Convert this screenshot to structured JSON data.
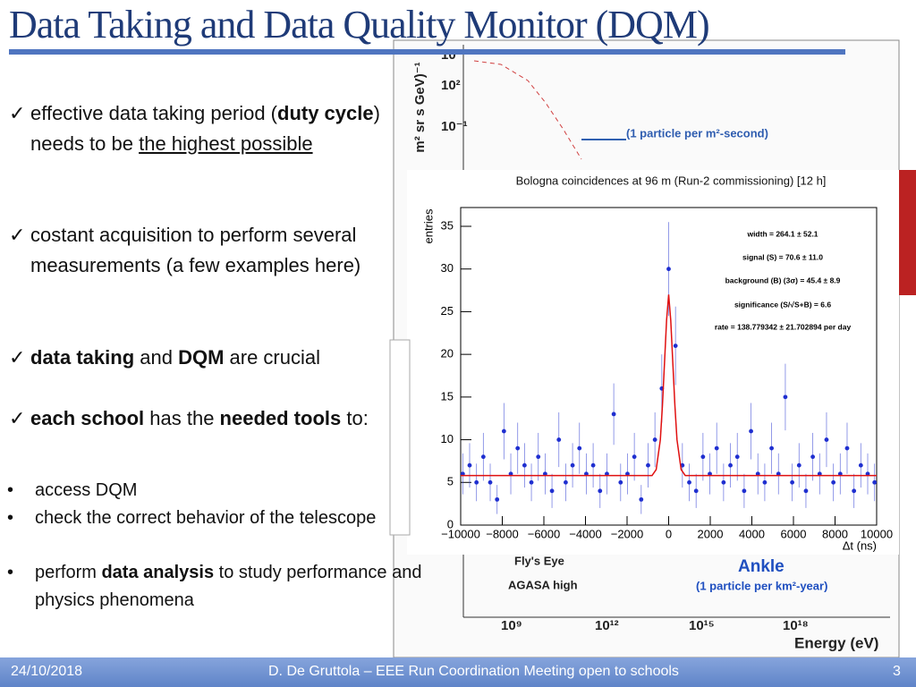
{
  "slide": {
    "title": "Data Taking and Data Quality Monitor (DQM)",
    "bullets": [
      [
        {
          "text": "effective data taking period ("
        },
        {
          "text": "duty cycle",
          "bold": true
        },
        {
          "text": ") needs to be "
        },
        {
          "text": "the highest possible",
          "underline": true
        }
      ],
      [
        {
          "text": "costant acquisition to perform several measurements (a few examples here)"
        }
      ],
      [
        {
          "text": "data taking",
          "bold": true
        },
        {
          "text": " and "
        },
        {
          "text": "DQM",
          "bold": true
        },
        {
          "text": " are crucial"
        }
      ],
      [
        {
          "text": "each school",
          "bold": true
        },
        {
          "text": " has the "
        },
        {
          "text": "needed tools",
          "bold": true
        },
        {
          "text": " to:"
        }
      ]
    ],
    "sub_bullets": [
      [
        {
          "text": "access DQM"
        }
      ],
      [
        {
          "text": "check the correct behavior of the telescope"
        }
      ],
      [
        {
          "text": "perform "
        },
        {
          "text": "data analysis",
          "bold": true
        },
        {
          "text": " to study performance and physics phenomena"
        }
      ]
    ],
    "footer": {
      "date": "24/10/2018",
      "text": "D. De Gruttola – EEE Run Coordination Meeting open to schools",
      "page": "3"
    }
  },
  "background_chart": {
    "ylabel": "m² sr s GeV)⁻¹",
    "yticks": [
      "10",
      "10²",
      "10⁻¹"
    ],
    "xticks": [
      "10⁹",
      "10¹²",
      "10¹⁵",
      "10¹⁸"
    ],
    "xlabel": "Energy (eV)",
    "annotations": [
      "(1 particle per m²-second)",
      "Fly's Eye",
      "AGASA high",
      "Ankle",
      "(1 particle per km²-year)"
    ]
  },
  "chart_data": {
    "type": "scatter",
    "title": "Bologna coincidences at 96 m (Run-2 commissioning) [12 h]",
    "xlabel": "Δt (ns)",
    "ylabel": "entries",
    "xlim": [
      -10000,
      10000
    ],
    "ylim": [
      0,
      37.2
    ],
    "xticks": [
      {
        "value": -10000,
        "label": "−10000"
      },
      {
        "value": -8000,
        "label": "−8000"
      },
      {
        "value": -6000,
        "label": "−6000"
      },
      {
        "value": -4000,
        "label": "−4000"
      },
      {
        "value": -2000,
        "label": "−2000"
      },
      0,
      2000,
      4000,
      6000,
      8000,
      10000
    ],
    "yticks": [
      0,
      5,
      10,
      15,
      20,
      25,
      30,
      35
    ],
    "stats": [
      "width = 264.1 ±  52.1",
      "signal (S) =  70.6 ±  11.0",
      "background (B) (3σ) =  45.4 ±  8.9",
      "significance (S/√S+B) =  6.6",
      "rate = 138.779342 ± 21.702894 per day"
    ],
    "series": [
      {
        "color": "#1f2fd0",
        "x": [
          -9900,
          -9570,
          -9240,
          -8910,
          -8580,
          -8250,
          -7920,
          -7590,
          -7260,
          -6930,
          -6600,
          -6270,
          -5940,
          -5610,
          -5280,
          -4950,
          -4620,
          -4290,
          -3960,
          -3630,
          -3300,
          -2970,
          -2640,
          -2310,
          -1980,
          -1650,
          -1320,
          -990,
          -660,
          -330,
          0,
          330,
          660,
          990,
          1320,
          1650,
          1980,
          2310,
          2640,
          2970,
          3300,
          3630,
          3960,
          4290,
          4620,
          4950,
          5280,
          5610,
          5940,
          6270,
          6600,
          6930,
          7260,
          7590,
          7920,
          8250,
          8580,
          8910,
          9240,
          9570,
          9900
        ],
        "values": [
          6,
          7,
          5,
          8,
          5,
          3,
          11,
          6,
          9,
          7,
          5,
          8,
          6,
          4,
          10,
          5,
          7,
          9,
          6,
          7,
          4,
          6,
          13,
          5,
          6,
          8,
          3,
          7,
          10,
          16,
          30,
          21,
          7,
          5,
          4,
          8,
          6,
          9,
          5,
          7,
          8,
          4,
          11,
          6,
          5,
          9,
          6,
          15,
          5,
          7,
          4,
          8,
          6,
          10,
          5,
          6,
          9,
          4,
          7,
          6,
          5
        ],
        "errors": [
          2.4,
          2.6,
          2.2,
          2.8,
          2.2,
          1.7,
          3.3,
          2.4,
          3,
          2.6,
          2.2,
          2.8,
          2.4,
          2,
          3.2,
          2.2,
          2.6,
          3,
          2.4,
          2.6,
          2,
          2.4,
          3.6,
          2.2,
          2.4,
          2.8,
          1.7,
          2.6,
          3.2,
          4,
          5.5,
          4.6,
          2.6,
          2.2,
          2,
          2.8,
          2.4,
          3,
          2.2,
          2.6,
          2.8,
          2,
          3.3,
          2.4,
          2.2,
          3,
          2.4,
          3.9,
          2.2,
          2.6,
          2,
          2.8,
          2.4,
          3.2,
          2.2,
          2.4,
          3,
          2,
          2.6,
          2.4,
          2.2
        ]
      },
      {
        "color": "#e01010",
        "type": "line",
        "x": [
          -10000,
          -800,
          -600,
          -400,
          -300,
          -200,
          -100,
          0,
          100,
          200,
          300,
          400,
          600,
          800,
          10000
        ],
        "values": [
          5.8,
          5.8,
          6.5,
          10,
          14,
          19,
          24,
          27,
          24,
          19,
          14,
          10,
          6.5,
          5.8,
          5.8
        ]
      }
    ]
  }
}
